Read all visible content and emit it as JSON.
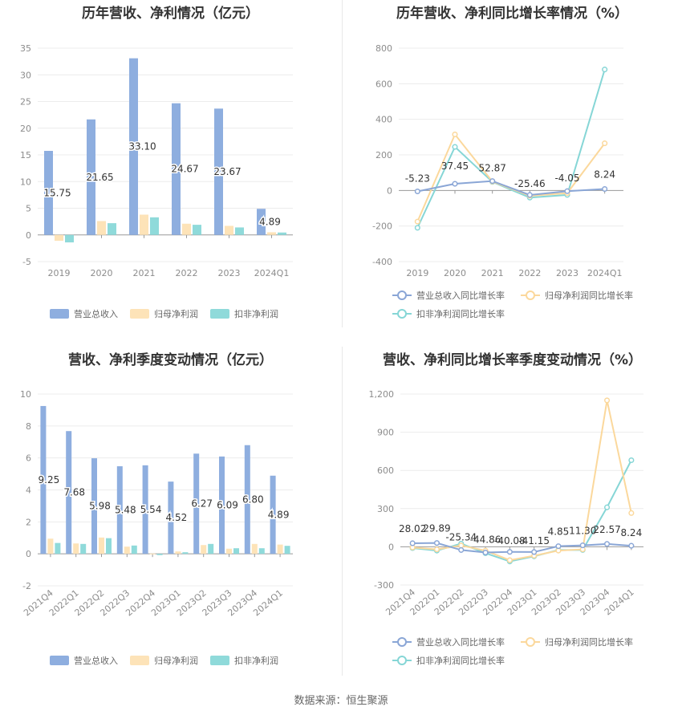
{
  "footer": "数据来源：恒生聚源",
  "colors": {
    "revenue": "#8eaedf",
    "net_profit": "#fde3b8",
    "deducted_profit": "#8fdada",
    "line_revenue": "#8aa6d6",
    "line_net": "#fbd89c",
    "line_deducted": "#86d6d6"
  },
  "chart_data": [
    {
      "id": "annual_bar",
      "type": "bar",
      "title": "历年营收、净利情况（亿元）",
      "categories": [
        "2019",
        "2020",
        "2021",
        "2022",
        "2023",
        "2024Q1"
      ],
      "series": [
        {
          "name": "营业总收入",
          "values": [
            15.75,
            21.65,
            33.1,
            24.67,
            23.67,
            4.89
          ],
          "labels": [
            "15.75",
            "21.65",
            "33.10",
            "24.67",
            "23.67",
            "4.89"
          ]
        },
        {
          "name": "归母净利润",
          "values": [
            -1.1,
            2.6,
            3.8,
            2.1,
            1.7,
            0.5
          ]
        },
        {
          "name": "扣非净利润",
          "values": [
            -1.4,
            2.2,
            3.3,
            1.9,
            1.4,
            0.45
          ]
        }
      ],
      "ylim": [
        -5,
        35
      ],
      "yticks": [
        "-5",
        "0",
        "5",
        "10",
        "15",
        "20",
        "25",
        "30",
        "35"
      ],
      "grid": true,
      "legend": "bottom"
    },
    {
      "id": "annual_line",
      "type": "line",
      "title": "历年营收、净利同比增长率情况（%）",
      "categories": [
        "2019",
        "2020",
        "2021",
        "2022",
        "2023",
        "2024Q1"
      ],
      "series": [
        {
          "name": "营业总收入同比增长率",
          "values": [
            -5.23,
            37.45,
            52.87,
            -25.46,
            -4.05,
            8.24
          ],
          "labels": [
            "-5.23",
            "37.45",
            "52.87",
            "-25.46",
            "-4.05",
            "8.24"
          ]
        },
        {
          "name": "归母净利润同比增长率",
          "values": [
            -175,
            315,
            50,
            -30,
            -15,
            265
          ]
        },
        {
          "name": "扣非净利润同比增长率",
          "values": [
            -210,
            245,
            48,
            -40,
            -25,
            680
          ]
        }
      ],
      "ylim": [
        -400,
        800
      ],
      "yticks": [
        "-400",
        "-200",
        "0",
        "200",
        "400",
        "600",
        "800"
      ],
      "grid": true,
      "legend": "bottom"
    },
    {
      "id": "quarter_bar",
      "type": "bar",
      "title": "营收、净利季度变动情况（亿元）",
      "categories": [
        "2021Q4",
        "2022Q1",
        "2022Q2",
        "2022Q3",
        "2022Q4",
        "2023Q1",
        "2023Q2",
        "2023Q3",
        "2023Q4",
        "2024Q1"
      ],
      "series": [
        {
          "name": "营业总收入",
          "values": [
            9.25,
            7.68,
            5.98,
            5.48,
            5.54,
            4.52,
            6.27,
            6.09,
            6.8,
            4.89
          ],
          "labels": [
            "9.25",
            "7.68",
            "5.98",
            "5.48",
            "5.54",
            "4.52",
            "6.27",
            "6.09",
            "6.80",
            "4.89"
          ]
        },
        {
          "name": "归母净利润",
          "values": [
            0.95,
            0.65,
            1.02,
            0.45,
            0.02,
            0.15,
            0.55,
            0.32,
            0.62,
            0.58
          ]
        },
        {
          "name": "扣非净利润",
          "values": [
            0.68,
            0.62,
            0.98,
            0.52,
            -0.08,
            0.1,
            0.62,
            0.35,
            0.35,
            0.5
          ]
        }
      ],
      "ylim": [
        -2,
        10
      ],
      "yticks": [
        "-2",
        "0",
        "2",
        "4",
        "6",
        "8",
        "10"
      ],
      "grid": true,
      "legend": "bottom"
    },
    {
      "id": "quarter_line",
      "type": "line",
      "title": "营收、净利同比增长率季度变动情况（%）",
      "categories": [
        "2021Q4",
        "2022Q1",
        "2022Q2",
        "2022Q3",
        "2022Q4",
        "2023Q1",
        "2023Q2",
        "2023Q3",
        "2023Q4",
        "2024Q1"
      ],
      "series": [
        {
          "name": "营业总收入同比增长率",
          "values": [
            28.02,
            29.89,
            -25.34,
            -44.86,
            -40.08,
            -41.15,
            4.85,
            11.3,
            22.57,
            8.24
          ],
          "labels": [
            "28.02",
            "29.89",
            "-25.34",
            "-44.86",
            "-40.08",
            "-41.15",
            "4.85",
            "11.30",
            "22.57",
            "8.24"
          ]
        },
        {
          "name": "归母净利润同比增长率",
          "values": [
            -5,
            -20,
            10,
            -30,
            -105,
            -70,
            -30,
            -20,
            1150,
            265
          ]
        },
        {
          "name": "扣非净利润同比增长率",
          "values": [
            -10,
            -30,
            25,
            -50,
            -115,
            -75,
            -25,
            -25,
            310,
            680
          ]
        }
      ],
      "ylim": [
        -300,
        1200
      ],
      "yticks": [
        "-300",
        "0",
        "300",
        "600",
        "900",
        "1,200"
      ],
      "grid": true,
      "legend": "bottom"
    }
  ]
}
